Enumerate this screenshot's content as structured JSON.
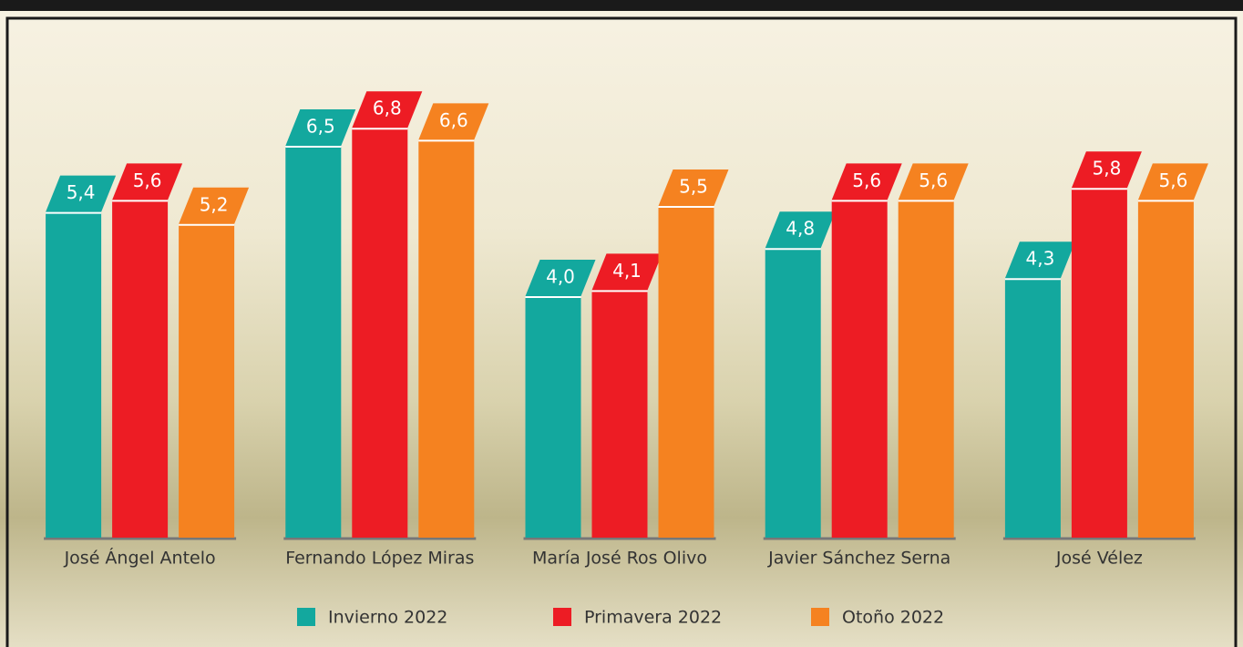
{
  "chart_data": {
    "type": "bar",
    "categories": [
      "José Ángel Antelo",
      "Fernando López Miras",
      "María José Ros Olivo",
      "Javier Sánchez Serna",
      "José Vélez"
    ],
    "series": [
      {
        "name": "Invierno 2022",
        "color": "#13a89e",
        "values": [
          5.4,
          6.5,
          4.0,
          4.8,
          4.3
        ],
        "value_labels": [
          "5,4",
          "6,5",
          "4,0",
          "4,8",
          "4,3"
        ]
      },
      {
        "name": "Primavera 2022",
        "color": "#ed1c24",
        "values": [
          5.6,
          6.8,
          4.1,
          5.6,
          5.8
        ],
        "value_labels": [
          "5,6",
          "6,8",
          "4,1",
          "5,6",
          "5,8"
        ]
      },
      {
        "name": "Otoño 2022",
        "color": "#f58220",
        "values": [
          5.2,
          6.6,
          5.5,
          5.6,
          5.6
        ],
        "value_labels": [
          "5,2",
          "6,6",
          "5,5",
          "5,6",
          "5,6"
        ]
      }
    ],
    "ylim": [
      0,
      8
    ]
  }
}
